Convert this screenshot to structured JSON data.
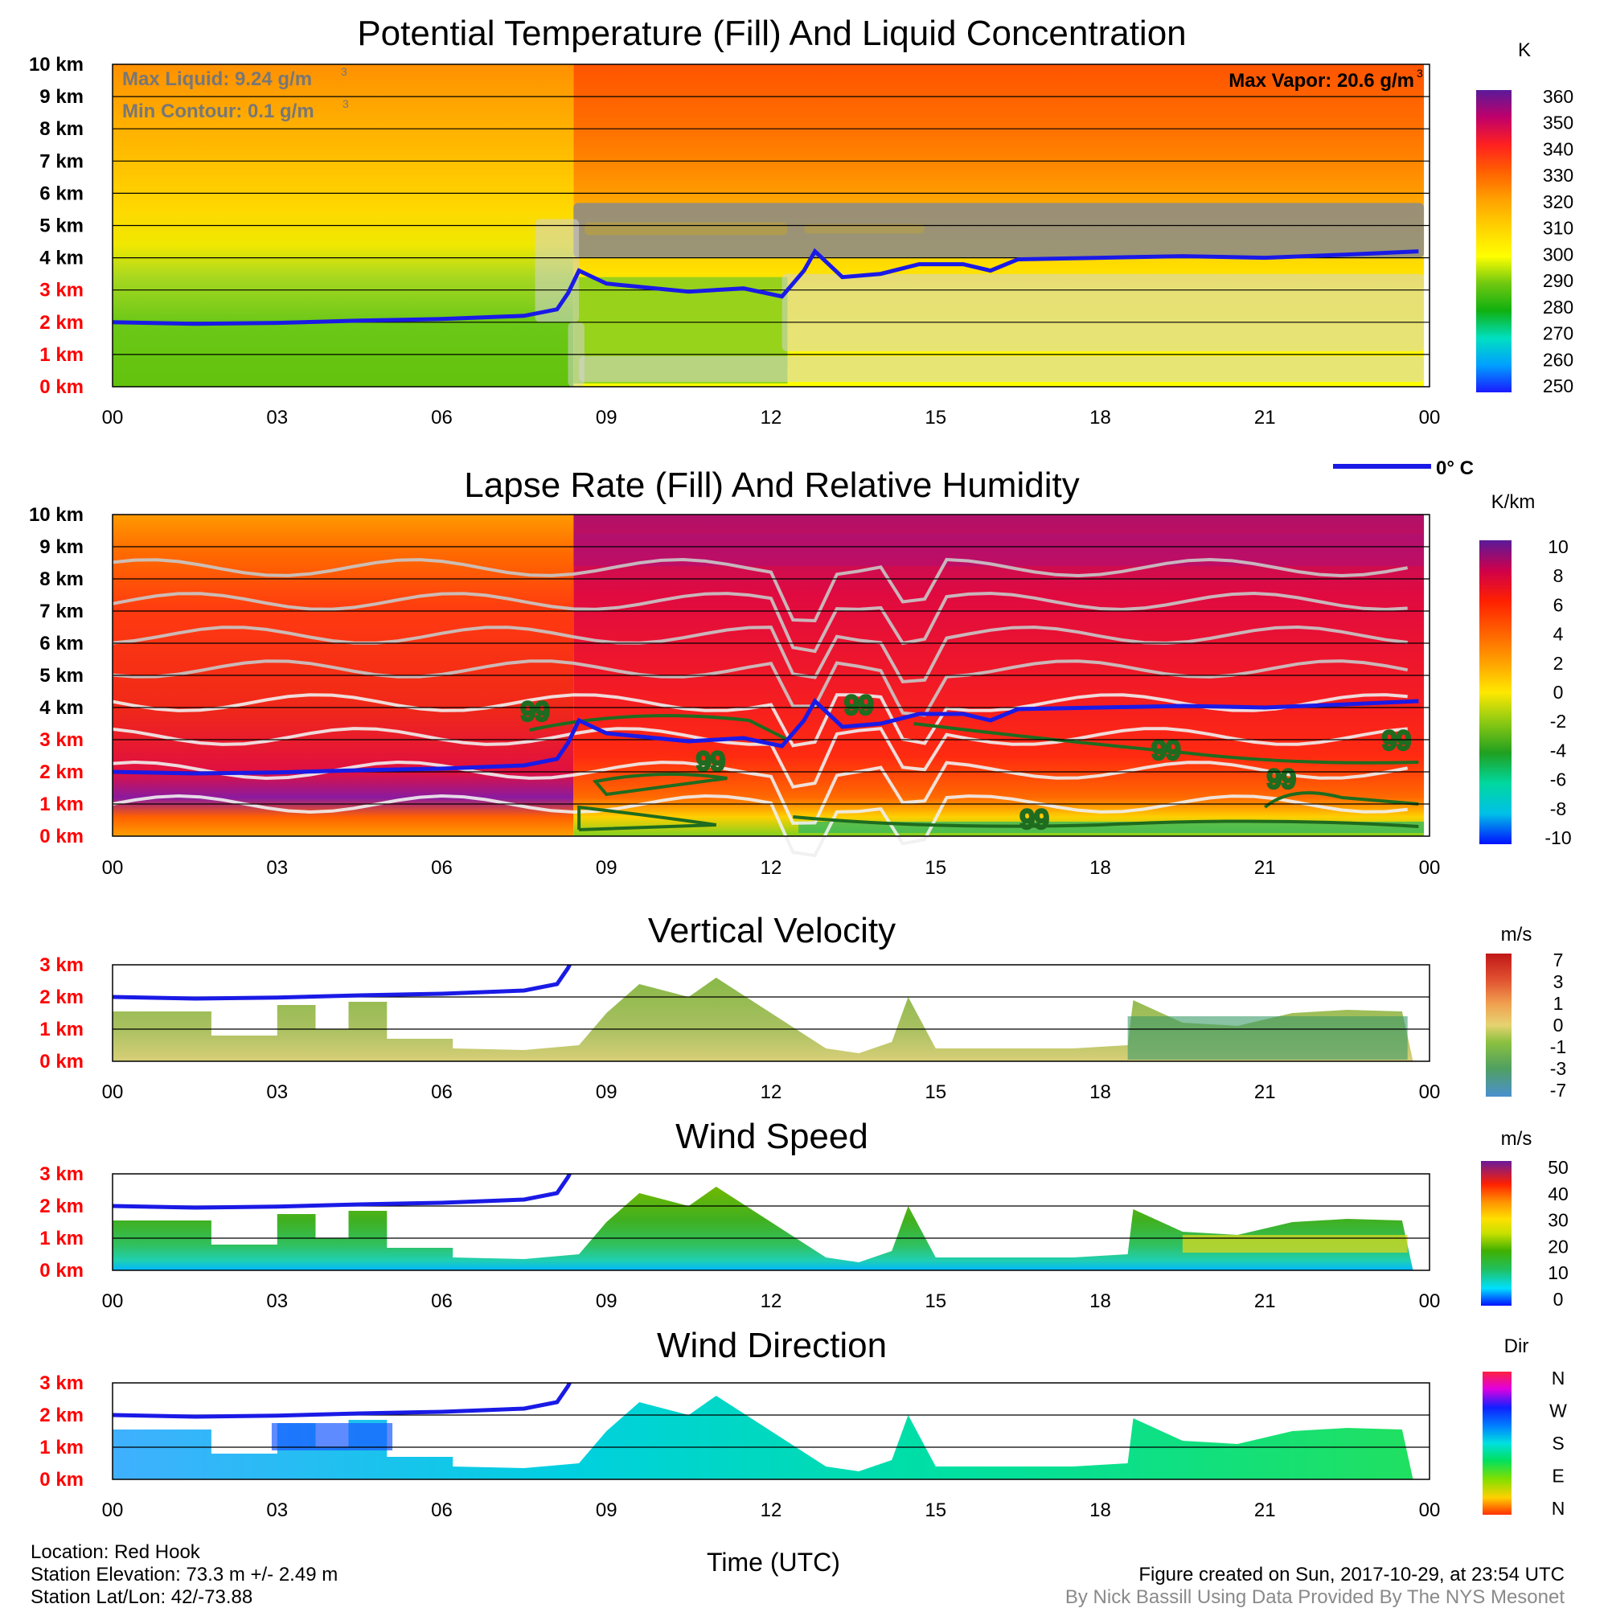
{
  "x_ticks": [
    "00",
    "03",
    "06",
    "09",
    "12",
    "15",
    "18",
    "21",
    "00"
  ],
  "colors": {
    "freezing_line": "#1a1ae6",
    "agl_label_red": "#ff0000",
    "msl_label_black": "#000000",
    "cloud_gray": "#a8a8a8",
    "rh_contour_green": "#1f6b1f"
  },
  "chart_data": [
    {
      "id": "theta",
      "type": "heatmap",
      "title": "Potential Temperature (Fill) And Liquid Concentration",
      "y_ticks": [
        "10 km",
        "9 km",
        "8 km",
        "7 km",
        "6 km",
        "5 km",
        "4 km",
        "3 km",
        "2 km",
        "1 km",
        "0 km"
      ],
      "y_tick_colors": [
        "#000000",
        "#000000",
        "#000000",
        "#000000",
        "#000000",
        "#000000",
        "#000000",
        "#ff0000",
        "#ff0000",
        "#ff0000",
        "#ff0000"
      ],
      "ylim": [
        0,
        10
      ],
      "xlim": [
        0,
        24
      ],
      "colorbar": {
        "unit": "K",
        "labels": [
          "360",
          "350",
          "340",
          "330",
          "320",
          "310",
          "300",
          "290",
          "280",
          "270",
          "260",
          "250"
        ],
        "range": [
          250,
          360
        ]
      },
      "annotations": {
        "max_liquid": "Max Liquid: 9.24 g/m",
        "min_contour": "Min Contour: 0.1 g/m",
        "max_vapor": "Max Vapor: 20.6 g/m",
        "cubed": "3"
      },
      "freezing_level_km": [
        [
          0,
          2.0
        ],
        [
          1.5,
          1.95
        ],
        [
          3,
          1.98
        ],
        [
          4.5,
          2.05
        ],
        [
          6,
          2.1
        ],
        [
          7.5,
          2.2
        ],
        [
          8.1,
          2.4
        ],
        [
          8.3,
          2.9
        ],
        [
          8.5,
          3.6
        ],
        [
          9,
          3.2
        ],
        [
          10.5,
          2.95
        ],
        [
          11.5,
          3.05
        ],
        [
          12.2,
          2.8
        ],
        [
          12.6,
          3.6
        ],
        [
          12.8,
          4.2
        ],
        [
          13.3,
          3.4
        ],
        [
          14,
          3.5
        ],
        [
          14.7,
          3.8
        ],
        [
          15.5,
          3.8
        ],
        [
          16,
          3.6
        ],
        [
          16.5,
          3.95
        ],
        [
          18,
          4.0
        ],
        [
          19.5,
          4.05
        ],
        [
          21,
          4.0
        ],
        [
          22.5,
          4.1
        ],
        [
          23.8,
          4.2
        ]
      ],
      "cloud_regions": [
        {
          "x": [
            8.4,
            23.9
          ],
          "y": [
            4.0,
            5.7
          ]
        },
        {
          "x": [
            7.7,
            8.5
          ],
          "y": [
            2.0,
            5.2
          ]
        },
        {
          "x": [
            8.3,
            8.6
          ],
          "y": [
            0.0,
            2.0
          ]
        },
        {
          "x": [
            12.2,
            23.9
          ],
          "y": [
            1.1,
            3.5
          ]
        },
        {
          "x": [
            8.5,
            23.9
          ],
          "y": [
            0.15,
            0.95
          ]
        }
      ]
    },
    {
      "id": "lapse",
      "type": "heatmap",
      "title": "Lapse Rate (Fill) And Relative Humidity",
      "y_ticks": [
        "10 km",
        "9 km",
        "8 km",
        "7 km",
        "6 km",
        "5 km",
        "4 km",
        "3 km",
        "2 km",
        "1 km",
        "0 km"
      ],
      "y_tick_colors": [
        "#000000",
        "#000000",
        "#000000",
        "#000000",
        "#000000",
        "#000000",
        "#000000",
        "#ff0000",
        "#ff0000",
        "#ff0000",
        "#ff0000"
      ],
      "ylim": [
        0,
        10
      ],
      "xlim": [
        0,
        24
      ],
      "colorbar": {
        "unit": "K/km",
        "labels": [
          "10",
          "8",
          "6",
          "4",
          "2",
          "0",
          "-2",
          "-4",
          "-6",
          "-8",
          "-10"
        ],
        "range": [
          -10,
          10
        ]
      },
      "contour_labels": [
        {
          "text": "99",
          "x": 7.7,
          "y": 3.6
        },
        {
          "text": "99",
          "x": 10.9,
          "y": 2.05
        },
        {
          "text": "99",
          "x": 13.6,
          "y": 3.8
        },
        {
          "text": "99",
          "x": 19.2,
          "y": 2.4
        },
        {
          "text": "99",
          "x": 21.3,
          "y": 1.5
        },
        {
          "text": "99",
          "x": 16.8,
          "y": 0.25
        },
        {
          "text": "99",
          "x": 23.4,
          "y": 2.7
        }
      ],
      "freezing_level_km": [
        [
          0,
          2.0
        ],
        [
          1.5,
          1.95
        ],
        [
          3,
          1.98
        ],
        [
          4.5,
          2.05
        ],
        [
          6,
          2.1
        ],
        [
          7.5,
          2.2
        ],
        [
          8.1,
          2.4
        ],
        [
          8.3,
          2.9
        ],
        [
          8.5,
          3.6
        ],
        [
          9,
          3.2
        ],
        [
          10.5,
          2.95
        ],
        [
          11.5,
          3.05
        ],
        [
          12.2,
          2.8
        ],
        [
          12.6,
          3.6
        ],
        [
          12.8,
          4.2
        ],
        [
          13.3,
          3.4
        ],
        [
          14,
          3.5
        ],
        [
          14.7,
          3.8
        ],
        [
          15.5,
          3.8
        ],
        [
          16,
          3.6
        ],
        [
          16.5,
          3.95
        ],
        [
          18,
          4.0
        ],
        [
          19.5,
          4.05
        ],
        [
          21,
          4.0
        ],
        [
          22.5,
          4.1
        ],
        [
          23.8,
          4.2
        ]
      ]
    },
    {
      "id": "vvel",
      "type": "heatmap",
      "title": "Vertical Velocity",
      "y_ticks": [
        "3 km",
        "2 km",
        "1 km",
        "0 km"
      ],
      "y_tick_colors": [
        "#ff0000",
        "#ff0000",
        "#ff0000",
        "#ff0000"
      ],
      "ylim": [
        0,
        3
      ],
      "xlim": [
        0,
        24
      ],
      "colorbar": {
        "unit": "m/s",
        "labels": [
          "7",
          "3",
          "1",
          "0",
          "-1",
          "-3",
          "-7"
        ],
        "range": [
          -7,
          7
        ]
      },
      "echo_top_km": [
        [
          0,
          1.55
        ],
        [
          1.8,
          1.55
        ],
        [
          1.8,
          0.8
        ],
        [
          3,
          0.8
        ],
        [
          3,
          1.75
        ],
        [
          3.7,
          1.75
        ],
        [
          3.7,
          1.0
        ],
        [
          4.3,
          1.0
        ],
        [
          4.3,
          1.85
        ],
        [
          5.0,
          1.85
        ],
        [
          5.0,
          0.7
        ],
        [
          6.2,
          0.7
        ],
        [
          6.2,
          0.4
        ],
        [
          7.5,
          0.35
        ],
        [
          8.5,
          0.5
        ],
        [
          9.0,
          1.5
        ],
        [
          9.6,
          2.4
        ],
        [
          10.5,
          2.0
        ],
        [
          11,
          2.6
        ],
        [
          12,
          1.5
        ],
        [
          13,
          0.4
        ],
        [
          13.6,
          0.25
        ],
        [
          14.2,
          0.6
        ],
        [
          14.5,
          2.0
        ],
        [
          15,
          0.4
        ],
        [
          17.5,
          0.4
        ],
        [
          18.5,
          0.5
        ],
        [
          18.6,
          1.9
        ],
        [
          19.5,
          1.2
        ],
        [
          20.5,
          1.1
        ],
        [
          21.5,
          1.5
        ],
        [
          22.5,
          1.6
        ],
        [
          23.5,
          1.55
        ],
        [
          23.7,
          0.0
        ]
      ],
      "freezing_level_km": [
        [
          0,
          2.0
        ],
        [
          1.5,
          1.95
        ],
        [
          3,
          1.98
        ],
        [
          4.5,
          2.05
        ],
        [
          6,
          2.1
        ],
        [
          7.5,
          2.2
        ],
        [
          8.1,
          2.4
        ],
        [
          8.3,
          2.9
        ],
        [
          8.5,
          3.6
        ]
      ]
    },
    {
      "id": "wspd",
      "type": "heatmap",
      "title": "Wind Speed",
      "y_ticks": [
        "3 km",
        "2 km",
        "1 km",
        "0 km"
      ],
      "y_tick_colors": [
        "#ff0000",
        "#ff0000",
        "#ff0000",
        "#ff0000"
      ],
      "ylim": [
        0,
        3
      ],
      "xlim": [
        0,
        24
      ],
      "colorbar": {
        "unit": "m/s",
        "labels": [
          "50",
          "40",
          "30",
          "20",
          "10",
          "0"
        ],
        "range": [
          0,
          50
        ]
      },
      "echo_top_km": [
        [
          0,
          1.55
        ],
        [
          1.8,
          1.55
        ],
        [
          1.8,
          0.8
        ],
        [
          3,
          0.8
        ],
        [
          3,
          1.75
        ],
        [
          3.7,
          1.75
        ],
        [
          3.7,
          1.0
        ],
        [
          4.3,
          1.0
        ],
        [
          4.3,
          1.85
        ],
        [
          5.0,
          1.85
        ],
        [
          5.0,
          0.7
        ],
        [
          6.2,
          0.7
        ],
        [
          6.2,
          0.4
        ],
        [
          7.5,
          0.35
        ],
        [
          8.5,
          0.5
        ],
        [
          9.0,
          1.5
        ],
        [
          9.6,
          2.4
        ],
        [
          10.5,
          2.0
        ],
        [
          11,
          2.6
        ],
        [
          12,
          1.5
        ],
        [
          13,
          0.4
        ],
        [
          13.6,
          0.25
        ],
        [
          14.2,
          0.6
        ],
        [
          14.5,
          2.0
        ],
        [
          15,
          0.4
        ],
        [
          17.5,
          0.4
        ],
        [
          18.5,
          0.5
        ],
        [
          18.6,
          1.9
        ],
        [
          19.5,
          1.2
        ],
        [
          20.5,
          1.1
        ],
        [
          21.5,
          1.5
        ],
        [
          22.5,
          1.6
        ],
        [
          23.5,
          1.55
        ],
        [
          23.7,
          0.0
        ]
      ],
      "freezing_level_km": [
        [
          0,
          2.0
        ],
        [
          1.5,
          1.95
        ],
        [
          3,
          1.98
        ],
        [
          4.5,
          2.05
        ],
        [
          6,
          2.1
        ],
        [
          7.5,
          2.2
        ],
        [
          8.1,
          2.4
        ],
        [
          8.3,
          2.9
        ],
        [
          8.5,
          3.6
        ]
      ]
    },
    {
      "id": "wdir",
      "type": "heatmap",
      "title": "Wind Direction",
      "y_ticks": [
        "3 km",
        "2 km",
        "1 km",
        "0 km"
      ],
      "y_tick_colors": [
        "#ff0000",
        "#ff0000",
        "#ff0000",
        "#ff0000"
      ],
      "ylim": [
        0,
        3
      ],
      "xlim": [
        0,
        24
      ],
      "colorbar": {
        "unit": "Dir",
        "labels": [
          "N",
          "W",
          "S",
          "E",
          "N"
        ],
        "range": [
          0,
          360
        ]
      },
      "echo_top_km": [
        [
          0,
          1.55
        ],
        [
          1.8,
          1.55
        ],
        [
          1.8,
          0.8
        ],
        [
          3,
          0.8
        ],
        [
          3,
          1.75
        ],
        [
          3.7,
          1.75
        ],
        [
          3.7,
          1.0
        ],
        [
          4.3,
          1.0
        ],
        [
          4.3,
          1.85
        ],
        [
          5.0,
          1.85
        ],
        [
          5.0,
          0.7
        ],
        [
          6.2,
          0.7
        ],
        [
          6.2,
          0.4
        ],
        [
          7.5,
          0.35
        ],
        [
          8.5,
          0.5
        ],
        [
          9.0,
          1.5
        ],
        [
          9.6,
          2.4
        ],
        [
          10.5,
          2.0
        ],
        [
          11,
          2.6
        ],
        [
          12,
          1.5
        ],
        [
          13,
          0.4
        ],
        [
          13.6,
          0.25
        ],
        [
          14.2,
          0.6
        ],
        [
          14.5,
          2.0
        ],
        [
          15,
          0.4
        ],
        [
          17.5,
          0.4
        ],
        [
          18.5,
          0.5
        ],
        [
          18.6,
          1.9
        ],
        [
          19.5,
          1.2
        ],
        [
          20.5,
          1.1
        ],
        [
          21.5,
          1.5
        ],
        [
          22.5,
          1.6
        ],
        [
          23.5,
          1.55
        ],
        [
          23.7,
          0.0
        ]
      ],
      "freezing_level_km": [
        [
          0,
          2.0
        ],
        [
          1.5,
          1.95
        ],
        [
          3,
          1.98
        ],
        [
          4.5,
          2.05
        ],
        [
          6,
          2.1
        ],
        [
          7.5,
          2.2
        ],
        [
          8.1,
          2.4
        ],
        [
          8.3,
          2.9
        ],
        [
          8.5,
          3.6
        ]
      ]
    }
  ],
  "legend": {
    "freezing_label": "0° C"
  },
  "footer": {
    "location": "Location: Red Hook",
    "elevation": "Station Elevation: 73.3 m +/- 2.49 m",
    "latlon": "Station Lat/Lon: 42/-73.88",
    "xlabel": "Time (UTC)",
    "created": "Figure created on Sun, 2017-10-29, at 23:54 UTC",
    "credit": "By Nick Bassill Using Data Provided By The NYS Mesonet"
  }
}
